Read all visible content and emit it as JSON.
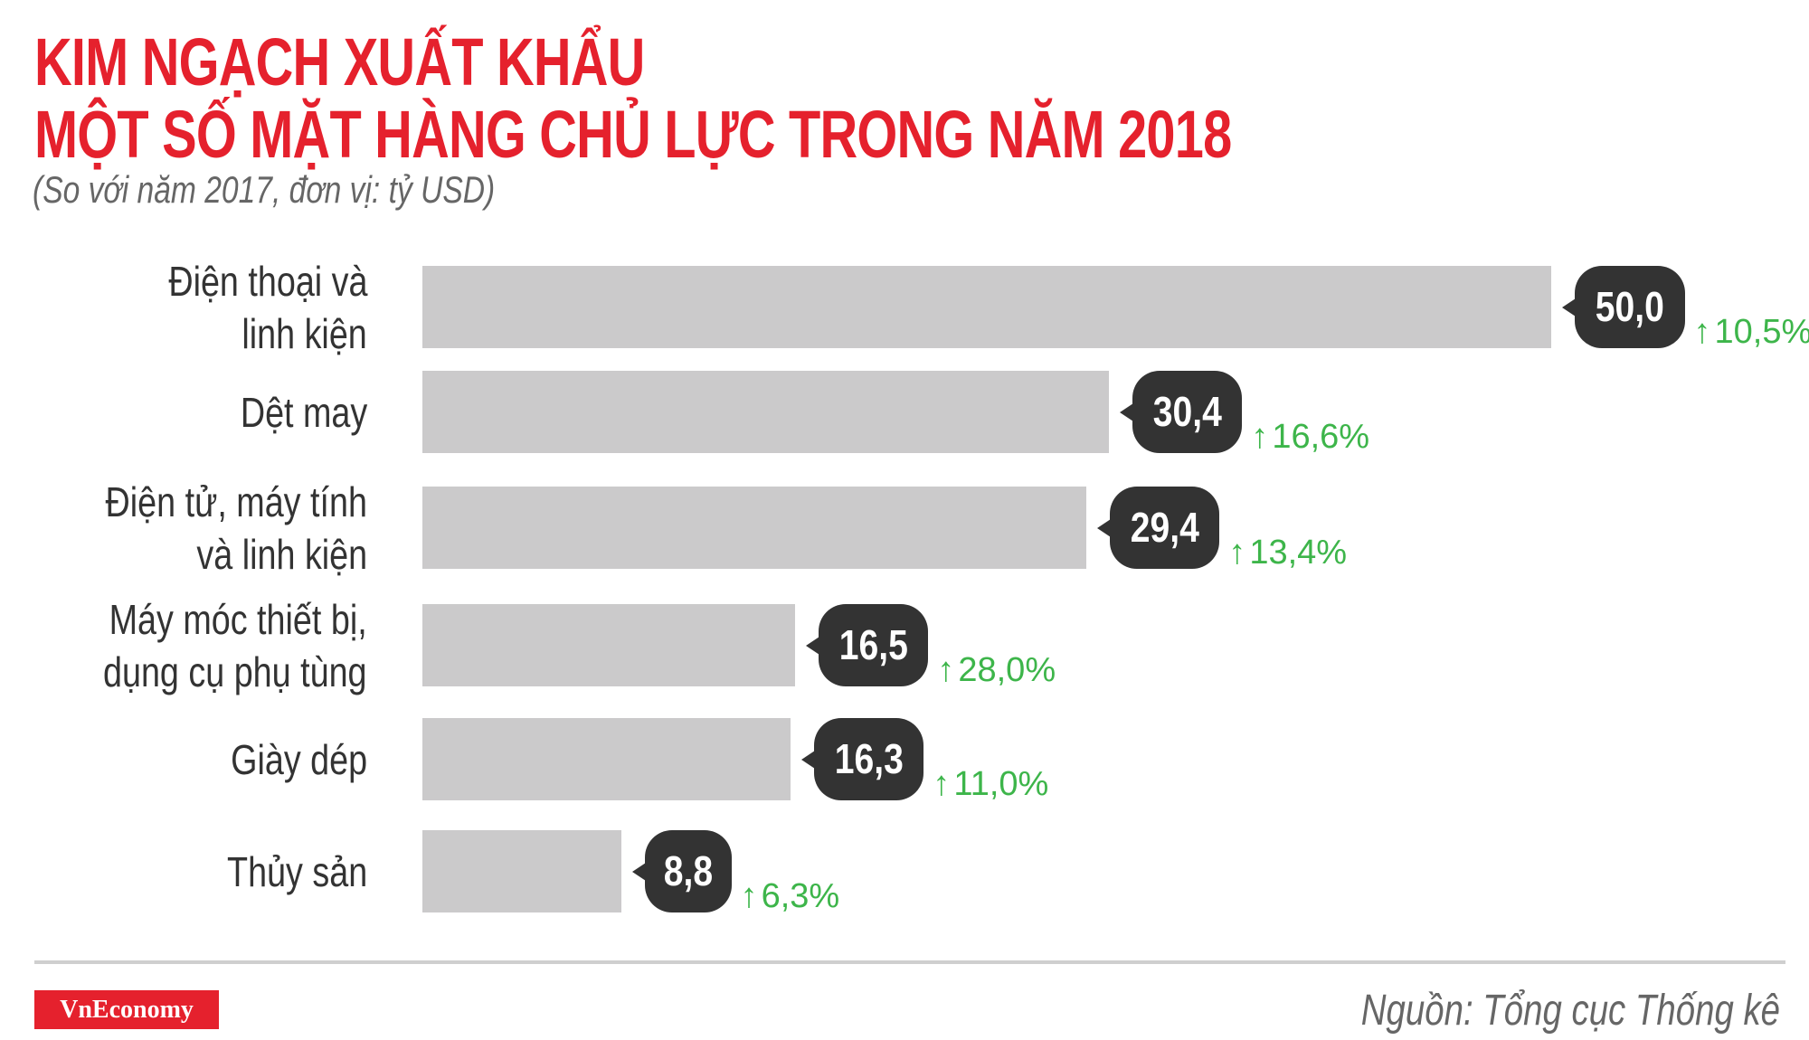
{
  "title_line1": "KIM NGẠCH XUẤT KHẨU",
  "title_line2": "MỘT SỐ MẶT HÀNG CHỦ LỰC TRONG NĂM 2018",
  "subtitle": "(So với năm 2017, đơn vị: tỷ USD)",
  "source": "Nguồn: Tổng cục Thống kê",
  "logo_text": "VnEconomy",
  "colors": {
    "title": "#e5212d",
    "bar": "#cbcacb",
    "bubble": "#333333",
    "growth": "#3db54a"
  },
  "chart_data": {
    "type": "bar",
    "orientation": "horizontal",
    "title": "KIM NGẠCH XUẤT KHẨU MỘT SỐ MẶT HÀNG CHỦ LỰC TRONG NĂM 2018",
    "subtitle": "(So với năm 2017, đơn vị: tỷ USD)",
    "categories": [
      "Điện thoại và\nlinh kiện",
      "Dệt may",
      "Điện tử, máy tính\nvà linh kiện",
      "Máy móc thiết bị,\ndụng cụ phụ tùng",
      "Giày dép",
      "Thủy sản"
    ],
    "values": [
      50.0,
      30.4,
      29.4,
      16.5,
      16.3,
      8.8
    ],
    "value_labels": [
      "50,0",
      "30,4",
      "29,4",
      "16,5",
      "16,3",
      "8,8"
    ],
    "growth_labels": [
      "10,5%",
      "16,6%",
      "13,4%",
      "28,0%",
      "11,0%",
      "6,3%"
    ],
    "growth_icon": "arrow-up-icon",
    "xlim": [
      0,
      50
    ],
    "grid": false
  }
}
